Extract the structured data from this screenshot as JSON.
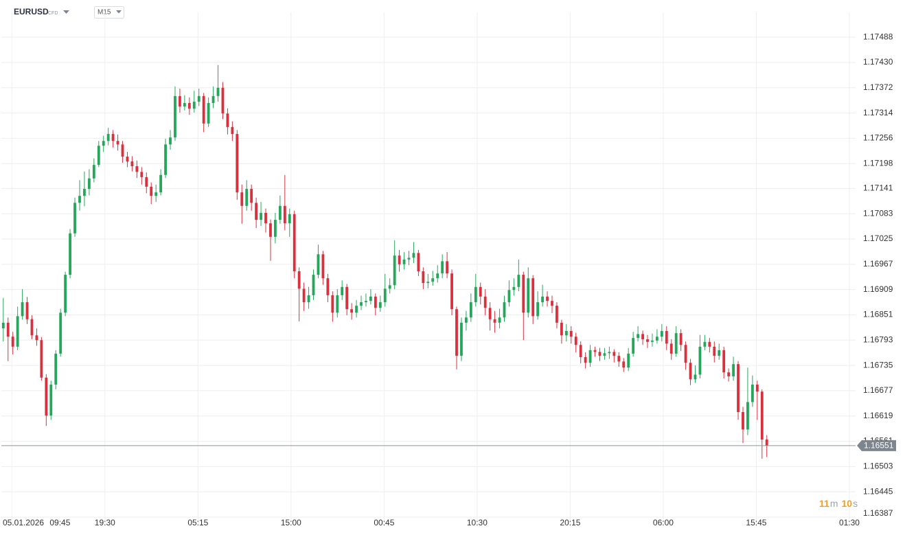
{
  "chart_data": {
    "type": "candlestick",
    "symbol": "EURUSD",
    "instrument_type": "CFD",
    "timeframe": "M15",
    "start_date": "05.01.2026",
    "up_color": "#26a65b",
    "down_color": "#d9303e",
    "grid": true,
    "xlim": [
      -0.4,
      178.6
    ],
    "xticks": [
      {
        "value": 1.8,
        "label": "09:45"
      },
      {
        "value": 21.3,
        "label": "19:30"
      },
      {
        "value": 40.8,
        "label": "05:15"
      },
      {
        "value": 60.3,
        "label": "15:00"
      },
      {
        "value": 79.8,
        "label": "00:45"
      },
      {
        "value": 99.3,
        "label": "10:30"
      },
      {
        "value": 118.8,
        "label": "20:15"
      },
      {
        "value": 138.3,
        "label": "06:00"
      },
      {
        "value": 157.8,
        "label": "15:45"
      },
      {
        "value": 177.3,
        "label": "01:30"
      }
    ],
    "ylim": [
      1.16368,
      1.17545
    ],
    "yticks": [
      1.17488,
      {
        "value": 1.1743,
        "label": "1.17430"
      },
      1.17372,
      1.17314,
      1.17256,
      1.17198,
      1.17141,
      1.17083,
      1.17025,
      1.16967,
      1.16909,
      1.16851,
      1.16793,
      1.16735,
      1.16677,
      1.16619,
      1.16561,
      1.16503,
      1.16445,
      1.16387
    ],
    "last_price": 1.16551,
    "countdown": [
      "11",
      "m",
      "10",
      "s"
    ],
    "open": [
      1.1682,
      1.16833,
      1.16801,
      1.16778,
      1.16848,
      1.1688,
      1.16841,
      1.16804,
      1.16793,
      1.16707,
      1.1662,
      1.16691,
      1.16762,
      1.16856,
      1.16943,
      1.17038,
      1.17108,
      1.17124,
      1.1714,
      1.17164,
      1.17195,
      1.17239,
      1.1725,
      1.17266,
      1.1725,
      1.17242,
      1.17214,
      1.17203,
      1.17192,
      1.17179,
      1.17167,
      1.17145,
      1.17124,
      1.17132,
      1.17172,
      1.17242,
      1.17258,
      1.17353,
      1.17329,
      1.17337,
      1.17324,
      1.1734,
      1.17353,
      1.1729,
      1.17337,
      1.17353,
      1.17372,
      1.17313,
      1.17282,
      1.17266,
      1.17132,
      1.17101,
      1.1714,
      1.17108,
      1.17069,
      1.17085,
      1.17061,
      1.1703,
      1.17069,
      1.17101,
      1.17061,
      1.17082,
      1.16951,
      1.16911,
      1.1688,
      1.16896,
      1.16943,
      1.1699,
      1.16935,
      1.16896,
      1.16856,
      1.16896,
      1.16915,
      1.16864,
      1.16856,
      1.16872,
      1.1688,
      1.16883,
      1.16893,
      1.16867,
      1.1688,
      1.16911,
      1.16919,
      1.16987,
      1.16967,
      1.16978,
      1.16982,
      1.16993,
      1.16951,
      1.16924,
      1.16927,
      1.16935,
      1.16946,
      1.16974,
      1.16946,
      1.16864,
      1.16757,
      1.16833,
      1.16845,
      1.1688,
      1.16915,
      1.16893,
      1.16867,
      1.16841,
      1.16833,
      1.16845,
      1.1688,
      1.16908,
      1.16915,
      1.16943,
      1.16856,
      1.16935,
      1.16848,
      1.1688,
      1.16893,
      1.16883,
      1.16872,
      1.16833,
      1.16804,
      1.16814,
      1.16801,
      1.16782,
      1.16754,
      1.16741,
      1.1677,
      1.16766,
      1.16757,
      1.16763,
      1.16766,
      1.16757,
      1.16744,
      1.1673,
      1.16762,
      1.16798,
      1.16807,
      1.16795,
      1.16789,
      1.16792,
      1.16801,
      1.16814,
      1.16785,
      1.16762,
      1.16809,
      1.16782,
      1.16741,
      1.16703,
      1.16714,
      1.16778,
      1.16789,
      1.16778,
      1.16757,
      1.1677,
      1.16719,
      1.1671,
      1.16738,
      1.16628,
      1.16588,
      1.16651,
      1.16691,
      1.16675,
      1.16565
    ],
    "high": [
      1.1689,
      1.16845,
      1.16812,
      1.1687,
      1.1691,
      1.16892,
      1.1685,
      1.1682,
      1.168,
      1.16715,
      1.167,
      1.1677,
      1.16865,
      1.1695,
      1.17048,
      1.1712,
      1.1716,
      1.1718,
      1.17185,
      1.1721,
      1.1725,
      1.17262,
      1.1728,
      1.17275,
      1.17265,
      1.1725,
      1.17225,
      1.17215,
      1.17205,
      1.1719,
      1.17178,
      1.17155,
      1.1715,
      1.17185,
      1.17255,
      1.17275,
      1.17375,
      1.1737,
      1.17355,
      1.1735,
      1.17365,
      1.1737,
      1.1736,
      1.1735,
      1.17375,
      1.17424,
      1.17385,
      1.17325,
      1.17295,
      1.17275,
      1.1715,
      1.1716,
      1.1715,
      1.1712,
      1.1711,
      1.17095,
      1.1707,
      1.17085,
      1.17125,
      1.17172,
      1.17095,
      1.1709,
      1.1696,
      1.16925,
      1.16915,
      1.16955,
      1.17012,
      1.16998,
      1.16945,
      1.16905,
      1.1691,
      1.1693,
      1.16922,
      1.16878,
      1.16885,
      1.16895,
      1.169,
      1.1691,
      1.169,
      1.16895,
      1.16945,
      1.16935,
      1.17022,
      1.17,
      1.16995,
      1.16998,
      1.17018,
      1.17,
      1.1696,
      1.16945,
      1.16952,
      1.16965,
      1.1699,
      1.16995,
      1.16955,
      1.1687,
      1.16845,
      1.1686,
      1.169,
      1.16945,
      1.16925,
      1.1691,
      1.1688,
      1.1686,
      1.16865,
      1.16895,
      1.1693,
      1.16935,
      1.16978,
      1.1695,
      1.1696,
      1.16942,
      1.16905,
      1.1692,
      1.16905,
      1.16895,
      1.1688,
      1.1684,
      1.1683,
      1.16825,
      1.1681,
      1.1679,
      1.16765,
      1.16782,
      1.16778,
      1.16775,
      1.16775,
      1.16778,
      1.16772,
      1.16765,
      1.16752,
      1.16775,
      1.16812,
      1.16825,
      1.16815,
      1.16805,
      1.16808,
      1.16818,
      1.1683,
      1.16825,
      1.16795,
      1.16825,
      1.16818,
      1.1679,
      1.1675,
      1.16735,
      1.16805,
      1.16805,
      1.16798,
      1.1679,
      1.16785,
      1.16778,
      1.16728,
      1.16755,
      1.16745,
      1.1664,
      1.1673,
      1.16712,
      1.167,
      1.1668,
      1.16575
    ],
    "low": [
      1.1679,
      1.16745,
      1.1676,
      1.1677,
      1.1684,
      1.1683,
      1.16795,
      1.1678,
      1.167,
      1.16596,
      1.1661,
      1.1668,
      1.16755,
      1.16848,
      1.16935,
      1.1703,
      1.1709,
      1.171,
      1.17125,
      1.17155,
      1.1719,
      1.17225,
      1.1724,
      1.17235,
      1.17228,
      1.172,
      1.1719,
      1.1718,
      1.17165,
      1.1715,
      1.1713,
      1.17105,
      1.1711,
      1.17125,
      1.17165,
      1.1723,
      1.1725,
      1.17315,
      1.1732,
      1.1731,
      1.17315,
      1.1733,
      1.1727,
      1.17282,
      1.17325,
      1.1734,
      1.173,
      1.17265,
      1.1725,
      1.17115,
      1.1706,
      1.1709,
      1.1709,
      1.1705,
      1.17055,
      1.1704,
      1.16975,
      1.17015,
      1.1706,
      1.17045,
      1.1703,
      1.16935,
      1.16836,
      1.1686,
      1.16865,
      1.16885,
      1.16935,
      1.1692,
      1.1688,
      1.16835,
      1.16845,
      1.16885,
      1.1685,
      1.1684,
      1.16845,
      1.16862,
      1.1687,
      1.16875,
      1.1685,
      1.16858,
      1.1687,
      1.169,
      1.1691,
      1.1695,
      1.16955,
      1.16965,
      1.1697,
      1.1694,
      1.1691,
      1.16912,
      1.16918,
      1.16925,
      1.16935,
      1.16935,
      1.1685,
      1.16726,
      1.16745,
      1.16815,
      1.16835,
      1.1687,
      1.16875,
      1.1685,
      1.16815,
      1.1681,
      1.1682,
      1.16835,
      1.1687,
      1.16895,
      1.16905,
      1.16793,
      1.16845,
      1.1683,
      1.1684,
      1.1687,
      1.1687,
      1.16855,
      1.1682,
      1.16785,
      1.1679,
      1.16785,
      1.16765,
      1.1674,
      1.16728,
      1.16732,
      1.16755,
      1.16745,
      1.16748,
      1.1675,
      1.16742,
      1.16732,
      1.1672,
      1.16722,
      1.16755,
      1.1679,
      1.16782,
      1.16775,
      1.16778,
      1.16785,
      1.1679,
      1.1677,
      1.16748,
      1.16755,
      1.16768,
      1.16725,
      1.1669,
      1.16695,
      1.16705,
      1.1677,
      1.16765,
      1.16742,
      1.16748,
      1.16705,
      1.16698,
      1.167,
      1.1661,
      1.16557,
      1.16575,
      1.1664,
      1.1661,
      1.16521,
      1.16525
    ],
    "close": [
      1.16833,
      1.16801,
      1.16778,
      1.16848,
      1.1688,
      1.16841,
      1.16804,
      1.16793,
      1.16707,
      1.1662,
      1.16691,
      1.16762,
      1.16856,
      1.16943,
      1.17038,
      1.17108,
      1.17124,
      1.1714,
      1.17164,
      1.17195,
      1.17239,
      1.1725,
      1.17266,
      1.1725,
      1.17242,
      1.17214,
      1.17203,
      1.17192,
      1.17179,
      1.17167,
      1.17145,
      1.17124,
      1.17132,
      1.17172,
      1.17242,
      1.17258,
      1.17353,
      1.17329,
      1.17337,
      1.17324,
      1.1734,
      1.17353,
      1.1729,
      1.17337,
      1.17353,
      1.17372,
      1.17313,
      1.17282,
      1.17266,
      1.17132,
      1.17101,
      1.1714,
      1.17108,
      1.17069,
      1.17085,
      1.17061,
      1.1703,
      1.17069,
      1.17101,
      1.17061,
      1.17082,
      1.16951,
      1.16911,
      1.1688,
      1.16896,
      1.16943,
      1.1699,
      1.16935,
      1.16896,
      1.16856,
      1.16896,
      1.16915,
      1.16864,
      1.16856,
      1.16872,
      1.1688,
      1.16883,
      1.16893,
      1.16867,
      1.1688,
      1.16911,
      1.16919,
      1.16987,
      1.16967,
      1.16978,
      1.16982,
      1.16993,
      1.16951,
      1.16924,
      1.16927,
      1.16935,
      1.16946,
      1.16974,
      1.16946,
      1.16864,
      1.16757,
      1.16833,
      1.16845,
      1.1688,
      1.16915,
      1.16893,
      1.16867,
      1.16841,
      1.16833,
      1.16845,
      1.1688,
      1.16908,
      1.16915,
      1.16943,
      1.16856,
      1.16935,
      1.16848,
      1.1688,
      1.16893,
      1.16883,
      1.16872,
      1.16833,
      1.16804,
      1.16814,
      1.16801,
      1.16782,
      1.16754,
      1.16741,
      1.1677,
      1.16766,
      1.16757,
      1.16763,
      1.16766,
      1.16757,
      1.16744,
      1.1673,
      1.16762,
      1.16798,
      1.16807,
      1.16795,
      1.16789,
      1.16792,
      1.16801,
      1.16814,
      1.16785,
      1.16762,
      1.16809,
      1.16782,
      1.16741,
      1.16703,
      1.16714,
      1.16778,
      1.16789,
      1.16778,
      1.16757,
      1.1677,
      1.16719,
      1.1671,
      1.16738,
      1.16628,
      1.16588,
      1.16651,
      1.16691,
      1.16675,
      1.16565,
      1.16551
    ]
  }
}
